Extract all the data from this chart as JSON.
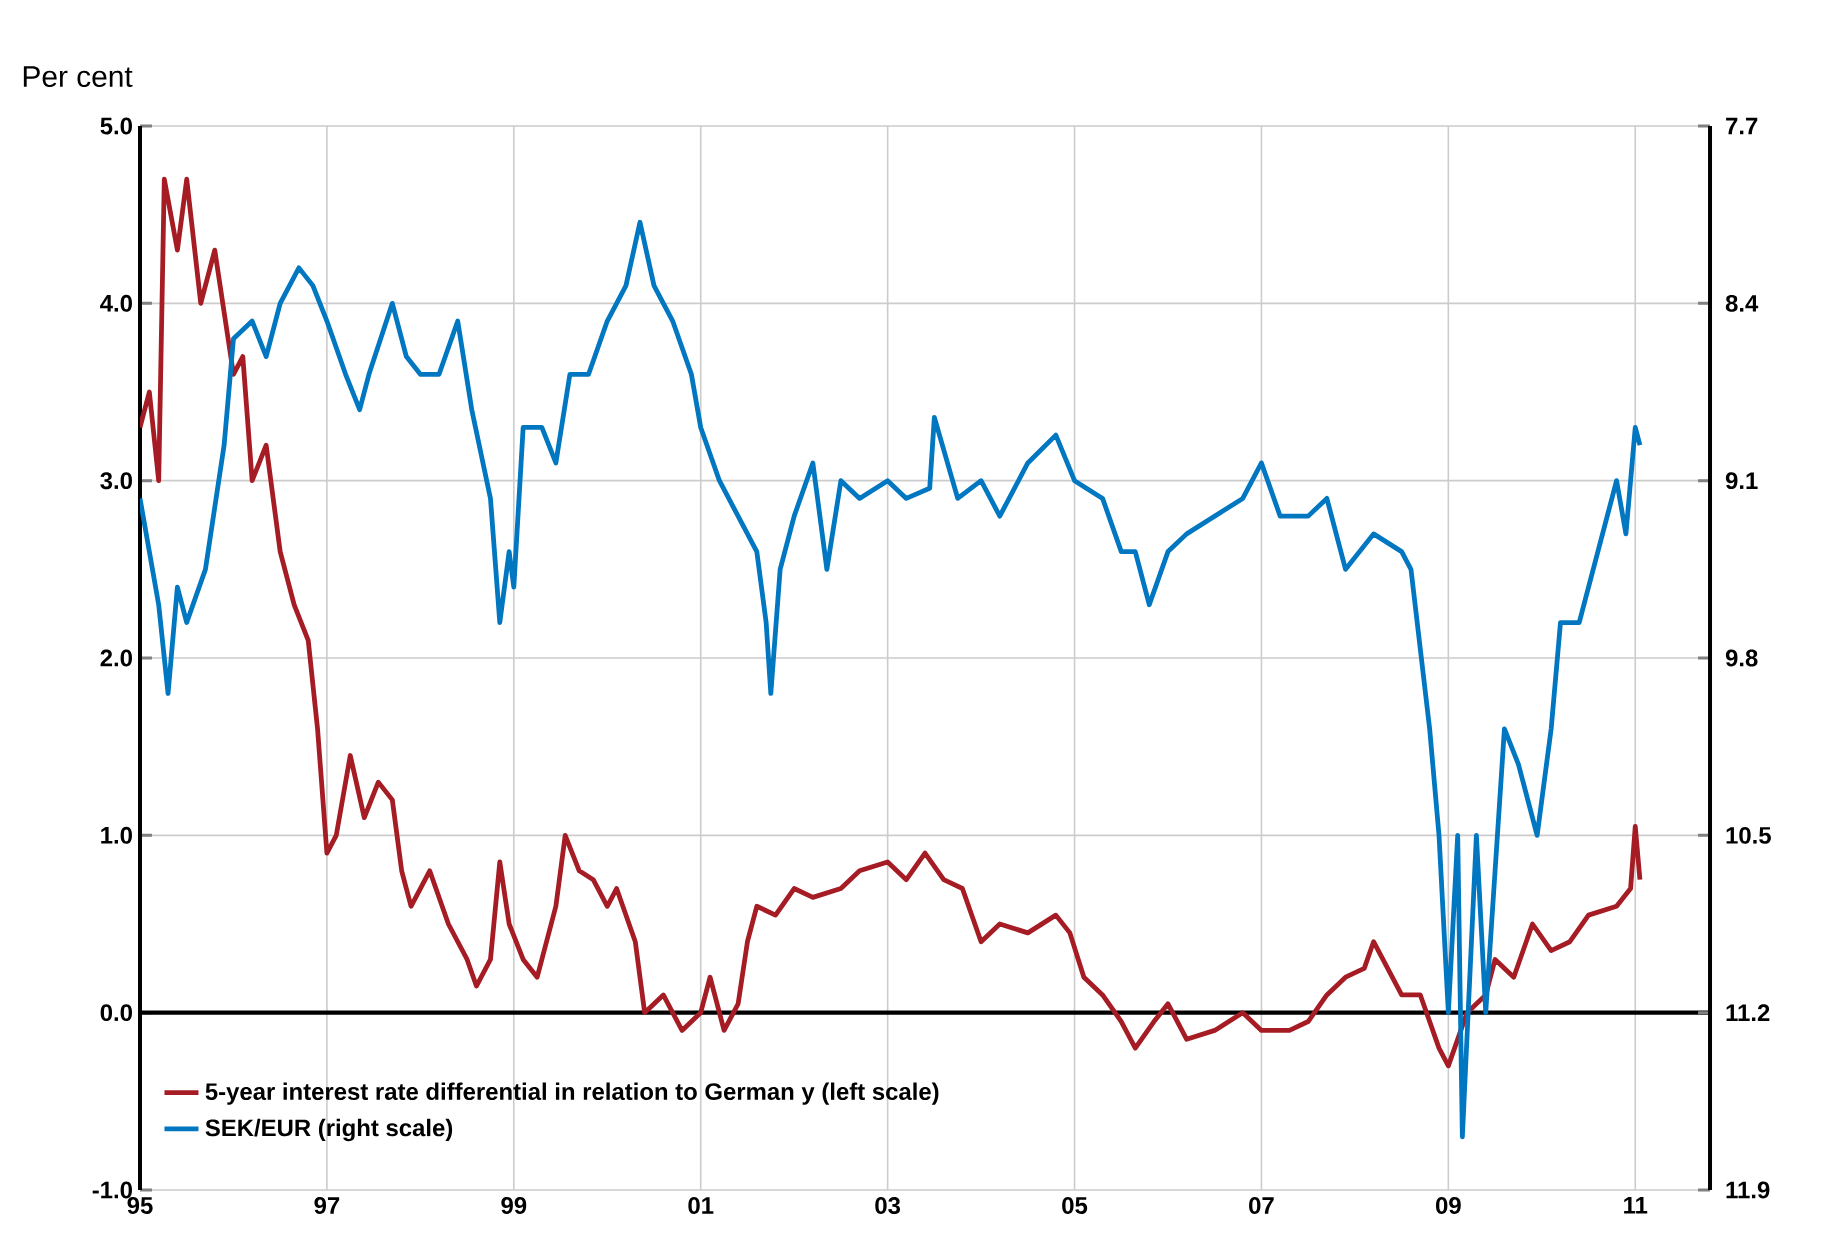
{
  "chart_data": {
    "type": "line",
    "ylabel": "Per cent",
    "xlim": [
      1995,
      2011.8
    ],
    "xticks": [
      {
        "value": 1995,
        "label": "95"
      },
      {
        "value": 1997,
        "label": "97"
      },
      {
        "value": 1999,
        "label": "99"
      },
      {
        "value": 2001,
        "label": "01"
      },
      {
        "value": 2003,
        "label": "03"
      },
      {
        "value": 2005,
        "label": "05"
      },
      {
        "value": 2007,
        "label": "07"
      },
      {
        "value": 2009,
        "label": "09"
      },
      {
        "value": 2011,
        "label": "11"
      }
    ],
    "ylim": [
      -1.0,
      5.0
    ],
    "yticks": [
      {
        "value": 5,
        "label": "5.0"
      },
      {
        "value": 4,
        "label": "4.0"
      },
      {
        "value": 3,
        "label": "3.0"
      },
      {
        "value": 2,
        "label": "2.0"
      },
      {
        "value": 1,
        "label": "1.0"
      },
      {
        "value": 0,
        "label": "0.0"
      },
      {
        "value": -1,
        "label": "-1.0"
      }
    ],
    "y2lim": [
      11.9,
      7.7
    ],
    "y2ticks": [
      7.7,
      8.4,
      9.1,
      9.8,
      10.5,
      11.2,
      11.9
    ],
    "grid": true,
    "legend": "bottom left",
    "ref_lines": [
      {
        "axis": "y",
        "value": 0,
        "color": "#000000"
      }
    ],
    "series": [
      {
        "name": "5-year interest rate differential in relation to German y (left scale)",
        "color": "#a51c24",
        "x": [
          1995.0,
          1995.1,
          1995.2,
          1995.26,
          1995.4,
          1995.5,
          1995.65,
          1995.8,
          1996.0,
          1996.1,
          1996.2,
          1996.35,
          1996.5,
          1996.65,
          1996.8,
          1996.9,
          1997.0,
          1997.1,
          1997.25,
          1997.4,
          1997.55,
          1997.7,
          1997.8,
          1997.9,
          1998.1,
          1998.3,
          1998.5,
          1998.6,
          1998.75,
          1998.85,
          1998.95,
          1999.1,
          1999.25,
          1999.45,
          1999.55,
          1999.7,
          1999.85,
          2000.0,
          2000.1,
          2000.3,
          2000.4,
          2000.6,
          2000.8,
          2001.0,
          2001.1,
          2001.25,
          2001.4,
          2001.5,
          2001.6,
          2001.8,
          2002.0,
          2002.2,
          2002.5,
          2002.7,
          2003.0,
          2003.2,
          2003.4,
          2003.6,
          2003.8,
          2004.0,
          2004.2,
          2004.5,
          2004.8,
          2004.95,
          2005.1,
          2005.3,
          2005.5,
          2005.65,
          2005.85,
          2006.0,
          2006.2,
          2006.5,
          2006.8,
          2007.0,
          2007.3,
          2007.5,
          2007.7,
          2007.9,
          2008.1,
          2008.2,
          2008.3,
          2008.5,
          2008.7,
          2008.9,
          2009.0,
          2009.2,
          2009.4,
          2009.5,
          2009.7,
          2009.9,
          2010.1,
          2010.3,
          2010.5,
          2010.8,
          2010.95,
          2011.0,
          2011.05
        ],
        "values": [
          3.3,
          3.5,
          3.0,
          4.7,
          4.3,
          4.7,
          4.0,
          4.3,
          3.6,
          3.7,
          3.0,
          3.2,
          2.6,
          2.3,
          2.1,
          1.6,
          0.9,
          1.0,
          1.45,
          1.1,
          1.3,
          1.2,
          0.8,
          0.6,
          0.8,
          0.5,
          0.3,
          0.15,
          0.3,
          0.85,
          0.5,
          0.3,
          0.2,
          0.6,
          1.0,
          0.8,
          0.75,
          0.6,
          0.7,
          0.4,
          0.0,
          0.1,
          -0.1,
          0.0,
          0.2,
          -0.1,
          0.05,
          0.4,
          0.6,
          0.55,
          0.7,
          0.65,
          0.7,
          0.8,
          0.85,
          0.75,
          0.9,
          0.75,
          0.7,
          0.4,
          0.5,
          0.45,
          0.55,
          0.45,
          0.2,
          0.1,
          -0.05,
          -0.2,
          -0.05,
          0.05,
          -0.15,
          -0.1,
          0.0,
          -0.1,
          -0.1,
          -0.05,
          0.1,
          0.2,
          0.25,
          0.4,
          0.3,
          0.1,
          0.1,
          -0.2,
          -0.3,
          0.0,
          0.1,
          0.3,
          0.2,
          0.5,
          0.35,
          0.4,
          0.55,
          0.6,
          0.7,
          1.05,
          0.75
        ]
      },
      {
        "name": "SEK/EUR (right scale)",
        "color": "#0077c0",
        "axis": "y2",
        "x": [
          1995.0,
          1995.1,
          1995.2,
          1995.3,
          1995.4,
          1995.5,
          1995.7,
          1995.9,
          1996.0,
          1996.2,
          1996.35,
          1996.5,
          1996.7,
          1996.85,
          1997.0,
          1997.2,
          1997.35,
          1997.45,
          1997.7,
          1997.85,
          1998.0,
          1998.2,
          1998.4,
          1998.55,
          1998.75,
          1998.85,
          1998.95,
          1999.0,
          1999.1,
          1999.3,
          1999.45,
          1999.6,
          1999.8,
          2000.0,
          2000.2,
          2000.35,
          2000.5,
          2000.7,
          2000.9,
          2001.0,
          2001.2,
          2001.4,
          2001.6,
          2001.7,
          2001.75,
          2001.85,
          2002.0,
          2002.2,
          2002.35,
          2002.5,
          2002.7,
          2003.0,
          2003.2,
          2003.45,
          2003.5,
          2003.75,
          2004.0,
          2004.2,
          2004.5,
          2004.8,
          2005.0,
          2005.3,
          2005.5,
          2005.65,
          2005.8,
          2006.0,
          2006.2,
          2006.5,
          2006.8,
          2007.0,
          2007.2,
          2007.5,
          2007.7,
          2007.9,
          2008.2,
          2008.5,
          2008.6,
          2008.8,
          2008.9,
          2009.0,
          2009.1,
          2009.15,
          2009.3,
          2009.4,
          2009.6,
          2009.75,
          2009.95,
          2010.1,
          2010.2,
          2010.4,
          2010.6,
          2010.8,
          2010.9,
          2011.0,
          2011.05
        ],
        "values": [
          9.17,
          9.38,
          9.59,
          9.94,
          9.52,
          9.66,
          9.45,
          8.96,
          8.54,
          8.47,
          8.61,
          8.4,
          8.26,
          8.33,
          8.47,
          8.68,
          8.82,
          8.68,
          8.4,
          8.61,
          8.68,
          8.68,
          8.47,
          8.82,
          9.17,
          9.66,
          9.38,
          9.52,
          8.89,
          8.89,
          9.03,
          8.68,
          8.68,
          8.47,
          8.33,
          8.08,
          8.33,
          8.47,
          8.68,
          8.89,
          9.1,
          9.24,
          9.38,
          9.66,
          9.94,
          9.45,
          9.24,
          9.03,
          9.45,
          9.1,
          9.17,
          9.1,
          9.17,
          9.13,
          8.85,
          9.17,
          9.1,
          9.24,
          9.03,
          8.92,
          9.1,
          9.17,
          9.38,
          9.38,
          9.59,
          9.38,
          9.31,
          9.24,
          9.17,
          9.03,
          9.24,
          9.24,
          9.17,
          9.45,
          9.31,
          9.38,
          9.45,
          10.08,
          10.5,
          11.2,
          10.5,
          11.69,
          10.5,
          11.2,
          10.08,
          10.22,
          10.5,
          10.08,
          9.66,
          9.66,
          9.38,
          9.1,
          9.31,
          8.89,
          8.96
        ]
      }
    ]
  }
}
